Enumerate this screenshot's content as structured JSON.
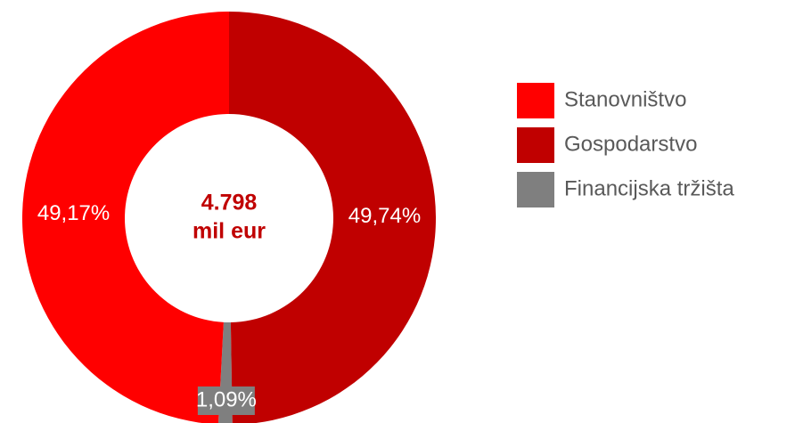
{
  "chart_data": {
    "type": "donut",
    "center_label": [
      "4.798",
      "mil eur"
    ],
    "categories": [
      "Stanovništvo",
      "Gospodarstvo",
      "Financijska tržišta"
    ],
    "values": [
      49.17,
      49.74,
      1.09
    ],
    "value_labels": [
      "49,17%",
      "49,74%",
      "1,09%"
    ],
    "colors": [
      "#ff0000",
      "#c00000",
      "#7f7f7f"
    ],
    "legend": "right"
  }
}
